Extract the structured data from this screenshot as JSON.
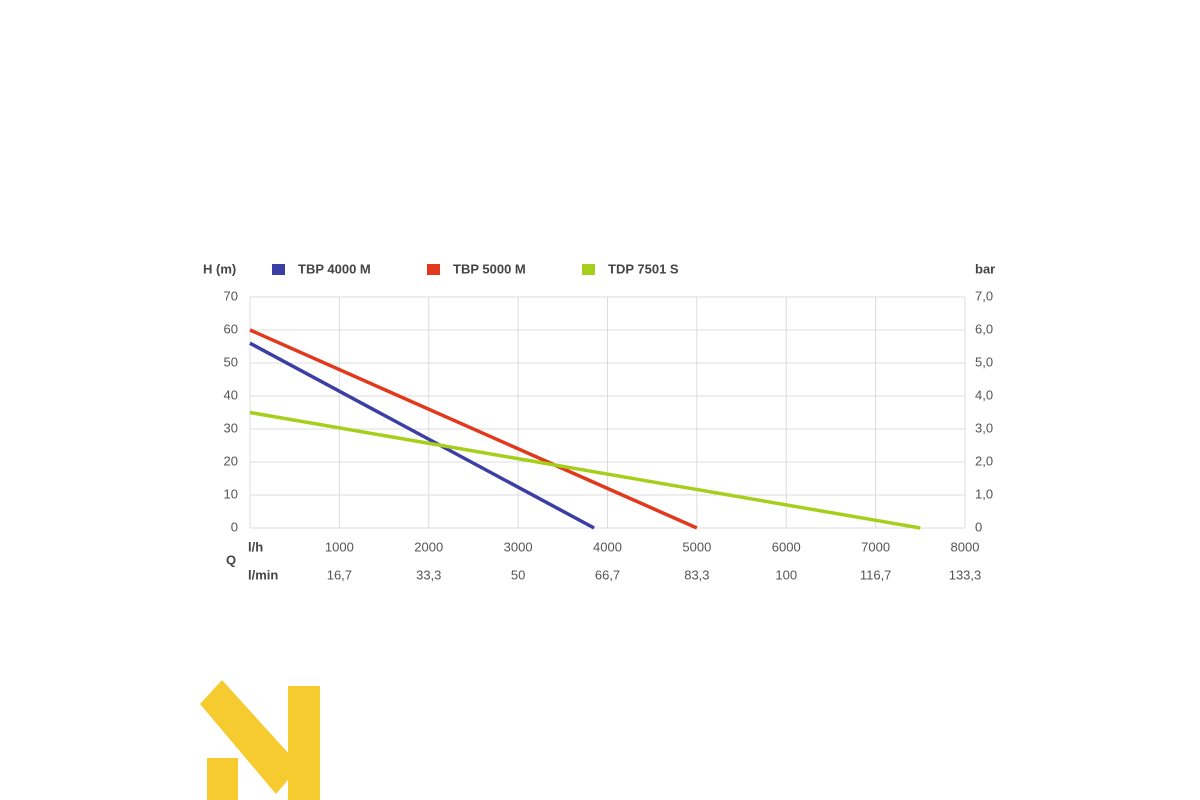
{
  "chart_data": {
    "type": "line",
    "y_label": "H (m)",
    "y2_label": "bar",
    "x_label": "Q",
    "x_unit": "l/h",
    "x2_unit": "l/min",
    "xlim": [
      0,
      8000
    ],
    "xticks": [
      1000,
      2000,
      3000,
      4000,
      5000,
      6000,
      7000,
      8000
    ],
    "x2ticks": [
      {
        "value": 1000,
        "label": "16,7"
      },
      {
        "value": 2000,
        "label": "33,3"
      },
      {
        "value": 3000,
        "label": "50"
      },
      {
        "value": 4000,
        "label": "66,7"
      },
      {
        "value": 5000,
        "label": "83,3"
      },
      {
        "value": 6000,
        "label": "100"
      },
      {
        "value": 7000,
        "label": "116,7"
      },
      {
        "value": 8000,
        "label": "133,3"
      }
    ],
    "ylim": [
      0,
      70
    ],
    "yticks": [
      0,
      10,
      20,
      30,
      40,
      50,
      60,
      70
    ],
    "y2lim": [
      0,
      7
    ],
    "y2ticks": [
      0,
      {
        "value": 1,
        "label": "1,0"
      },
      {
        "value": 2,
        "label": "2,0"
      },
      {
        "value": 3,
        "label": "3,0"
      },
      {
        "value": 4,
        "label": "4,0"
      },
      {
        "value": 5,
        "label": "5,0"
      },
      {
        "value": 6,
        "label": "6,0"
      },
      {
        "value": 7,
        "label": "7,0"
      }
    ],
    "grid": true,
    "series": [
      {
        "name": "TBP 4000 M",
        "color": "#3b3fa3",
        "x": [
          0,
          3850
        ],
        "values": [
          56,
          0
        ]
      },
      {
        "name": "TBP 5000 M",
        "color": "#e2391d",
        "x": [
          0,
          5000
        ],
        "values": [
          60,
          0
        ]
      },
      {
        "name": "TDP 7501 S",
        "color": "#a6cf1b",
        "x": [
          0,
          7500
        ],
        "values": [
          35,
          0
        ]
      }
    ]
  }
}
